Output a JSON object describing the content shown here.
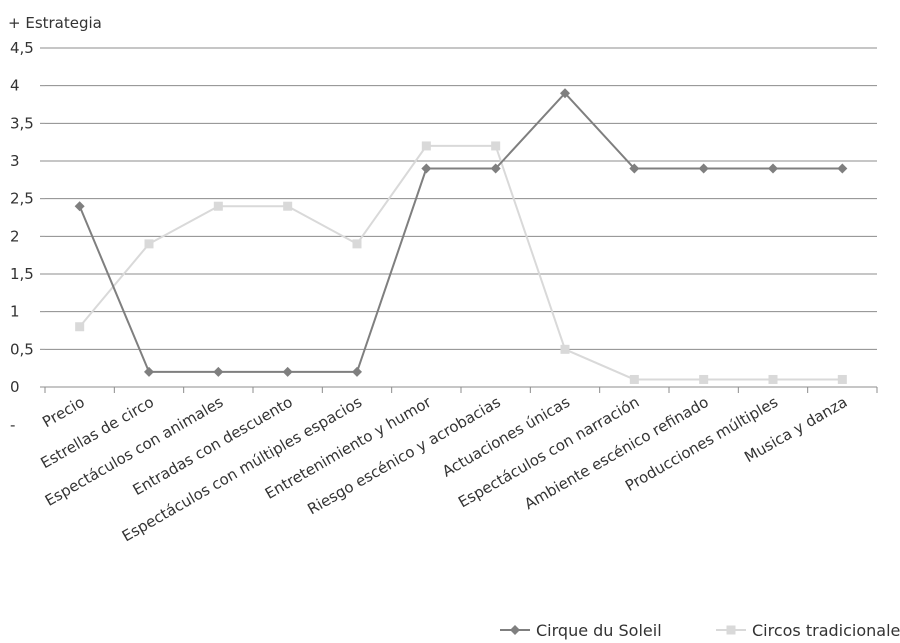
{
  "chart_data": {
    "type": "line",
    "top_label": "+ Estrategia",
    "bottom_label": "-",
    "categories": [
      "Precio",
      "Estrellas de circo",
      "Espectáculos con animales",
      "Entradas con descuento",
      "Espectáculos con múltiples espacios",
      "Entretenimiento y humor",
      "Riesgo escénico y acrobacias",
      "Actuaciones únicas",
      "Espectáculos con narración",
      "Ambiente escénico refinado",
      "Producciones múltiples",
      "Musica y danza"
    ],
    "series": [
      {
        "name": "Cirque du Soleil",
        "color": "#7f7f7f",
        "marker": "diamond",
        "values": [
          2.4,
          0.2,
          0.2,
          0.2,
          0.2,
          2.9,
          2.9,
          3.9,
          2.9,
          2.9,
          2.9,
          2.9
        ]
      },
      {
        "name": "Circos tradicionales",
        "color": "#d9d9d9",
        "marker": "square",
        "values": [
          0.8,
          1.9,
          2.4,
          2.4,
          1.9,
          3.2,
          3.2,
          0.5,
          0.1,
          0.1,
          0.1,
          0.1
        ]
      }
    ],
    "yticks": [
      "0",
      "0,5",
      "1",
      "1,5",
      "2",
      "2,5",
      "3",
      "3,5",
      "4",
      "4,5"
    ],
    "ylim": [
      0,
      4.5
    ],
    "grid": true,
    "legend_position": "bottom-right"
  }
}
